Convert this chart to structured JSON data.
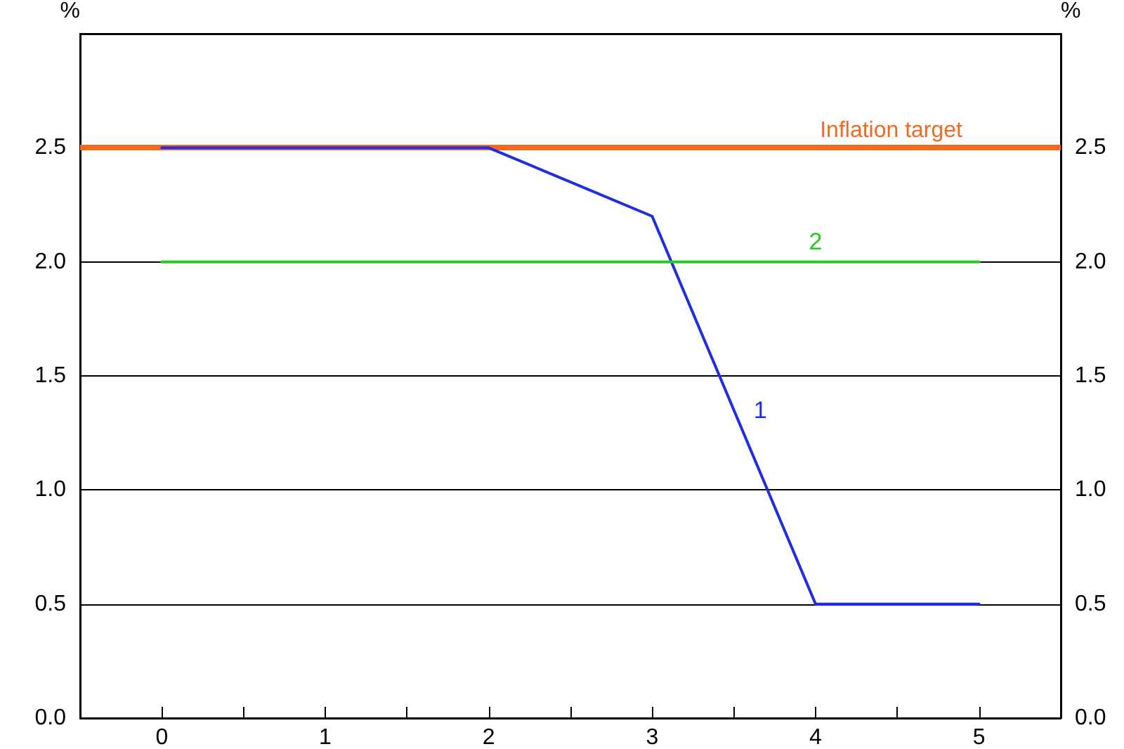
{
  "chart_data": {
    "type": "line",
    "ylabel": "%",
    "y2label": "%",
    "xlim": [
      -0.5,
      5.5
    ],
    "xticks": [
      {
        "value": -0.5,
        "label": null
      },
      0,
      {
        "value": 0.5,
        "label": null
      },
      1,
      {
        "value": 1.5,
        "label": null
      },
      2,
      {
        "value": 2.5,
        "label": null
      },
      3,
      {
        "value": 3.5,
        "label": null
      },
      4,
      {
        "value": 4.5,
        "label": null
      },
      5,
      {
        "value": 5.5,
        "label": null
      }
    ],
    "ylim": [
      0,
      3
    ],
    "yticks": [
      {
        "value": 0,
        "label": "0.0"
      },
      {
        "value": 0.5,
        "label": "0.5"
      },
      {
        "value": 1,
        "label": "1.0"
      },
      {
        "value": 1.5,
        "label": "1.5"
      },
      {
        "value": 2,
        "label": "2.0"
      },
      {
        "value": 2.5,
        "label": "2.5"
      },
      {
        "value": 3,
        "label": null
      }
    ],
    "y2lim": [
      0,
      3
    ],
    "y2ticks": [
      {
        "value": 0,
        "label": "0.0"
      },
      {
        "value": 0.5,
        "label": "0.5"
      },
      {
        "value": 1,
        "label": "1.0"
      },
      {
        "value": 1.5,
        "label": "1.5"
      },
      {
        "value": 2,
        "label": "2.0"
      },
      {
        "value": 2.5,
        "label": "2.5"
      },
      {
        "value": 3,
        "label": null
      }
    ],
    "grid": "y",
    "marker": "none",
    "line_style": "solid",
    "series": [
      {
        "name": "1",
        "color": "#1f2fe0",
        "x": [
          0,
          2,
          3,
          4,
          5
        ],
        "values": [
          2.5,
          2.5,
          2.2,
          0.5,
          0.5
        ]
      },
      {
        "name": "2",
        "color": "#22cc22",
        "x": [
          0,
          5
        ],
        "values": [
          2,
          2
        ]
      }
    ],
    "ref_lines": [
      {
        "axis": "y",
        "value": 2.5,
        "label": "Inflation target",
        "color": "#f26a22"
      }
    ]
  }
}
